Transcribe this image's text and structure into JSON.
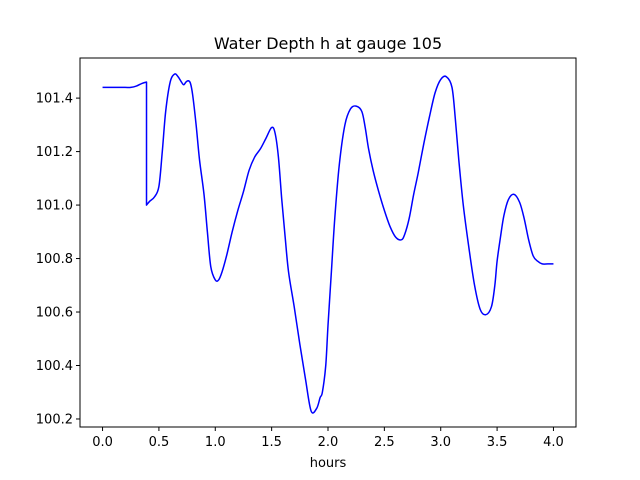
{
  "chart_data": {
    "type": "line",
    "title": "Water Depth h at gauge 105",
    "xlabel": "hours",
    "ylabel": "",
    "xlim": [
      -0.2,
      4.2
    ],
    "ylim": [
      100.17,
      101.55
    ],
    "grid": false,
    "xticks": [
      0.0,
      0.5,
      1.0,
      1.5,
      2.0,
      2.5,
      3.0,
      3.5,
      4.0
    ],
    "xtick_labels": [
      "0.0",
      "0.5",
      "1.0",
      "1.5",
      "2.0",
      "2.5",
      "3.0",
      "3.5",
      "4.0"
    ],
    "yticks": [
      100.2,
      100.4,
      100.6,
      100.8,
      101.0,
      101.2,
      101.4
    ],
    "ytick_labels": [
      "100.2",
      "100.4",
      "100.6",
      "100.8",
      "101.0",
      "101.2",
      "101.4"
    ],
    "line_color": "#0000ff",
    "series": [
      {
        "x": [
          0.0,
          0.1,
          0.2,
          0.25,
          0.3,
          0.35,
          0.39,
          0.39,
          0.42,
          0.46,
          0.5,
          0.53,
          0.56,
          0.6,
          0.64,
          0.67,
          0.7,
          0.72,
          0.74,
          0.76,
          0.78,
          0.8,
          0.83,
          0.86,
          0.9,
          0.93,
          0.96,
          1.0,
          1.03,
          1.06,
          1.1,
          1.15,
          1.2,
          1.25,
          1.3,
          1.35,
          1.4,
          1.45,
          1.5,
          1.53,
          1.56,
          1.59,
          1.62,
          1.65,
          1.7,
          1.75,
          1.8,
          1.85,
          1.9,
          1.93,
          1.95,
          1.98,
          2.0,
          2.03,
          2.06,
          2.1,
          2.15,
          2.2,
          2.25,
          2.3,
          2.33,
          2.36,
          2.4,
          2.45,
          2.5,
          2.55,
          2.6,
          2.65,
          2.68,
          2.72,
          2.76,
          2.8,
          2.85,
          2.9,
          2.95,
          3.0,
          3.05,
          3.1,
          3.13,
          3.16,
          3.2,
          3.25,
          3.3,
          3.35,
          3.4,
          3.45,
          3.48,
          3.5,
          3.53,
          3.56,
          3.6,
          3.65,
          3.7,
          3.74,
          3.78,
          3.82,
          3.86,
          3.9,
          3.95,
          4.0
        ],
        "y": [
          101.44,
          101.44,
          101.44,
          101.44,
          101.445,
          101.455,
          101.46,
          101.0,
          101.015,
          101.03,
          101.07,
          101.2,
          101.35,
          101.46,
          101.49,
          101.48,
          101.46,
          101.45,
          101.46,
          101.465,
          101.455,
          101.41,
          101.3,
          101.17,
          101.04,
          100.9,
          100.77,
          100.72,
          100.72,
          100.75,
          100.81,
          100.9,
          100.98,
          101.05,
          101.13,
          101.18,
          101.21,
          101.25,
          101.29,
          101.27,
          101.18,
          101.02,
          100.88,
          100.75,
          100.62,
          100.48,
          100.35,
          100.23,
          100.24,
          100.28,
          100.3,
          100.4,
          100.55,
          100.75,
          100.95,
          101.15,
          101.3,
          101.36,
          101.37,
          101.35,
          101.29,
          101.21,
          101.13,
          101.05,
          100.98,
          100.92,
          100.88,
          100.87,
          100.89,
          100.95,
          101.04,
          101.12,
          101.23,
          101.33,
          101.42,
          101.47,
          101.48,
          101.44,
          101.32,
          101.17,
          101.0,
          100.84,
          100.7,
          100.61,
          100.59,
          100.62,
          100.7,
          100.79,
          100.88,
          100.96,
          101.02,
          101.04,
          101.01,
          100.95,
          100.87,
          100.81,
          100.79,
          100.78,
          100.78,
          100.78
        ]
      }
    ]
  }
}
